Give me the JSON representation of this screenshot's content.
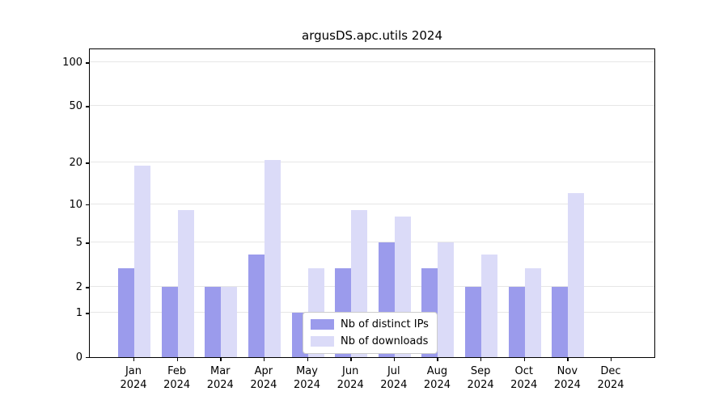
{
  "chart_data": {
    "type": "bar",
    "title": "argusDS.apc.utils 2024",
    "categories": [
      "Jan",
      "Feb",
      "Mar",
      "Apr",
      "May",
      "Jun",
      "Jul",
      "Aug",
      "Sep",
      "Oct",
      "Nov",
      "Dec"
    ],
    "x_tick_year": "2024",
    "series": [
      {
        "name": "Nb of distinct IPs",
        "color": "#9b9bec",
        "values": [
          3,
          2,
          2,
          4,
          1,
          3,
          5,
          3,
          2,
          2,
          2,
          0
        ]
      },
      {
        "name": "Nb of downloads",
        "color": "#dbdbf8",
        "values": [
          19,
          9,
          2,
          21,
          3,
          9,
          8,
          5,
          4,
          3,
          12,
          0
        ]
      }
    ],
    "yticks": [
      0,
      1,
      2,
      5,
      10,
      20,
      50,
      100
    ],
    "yscale": "log-like (log1p)",
    "ylim": [
      0,
      100
    ],
    "grid": "horizontal",
    "legend_position": "bottom-center-inside"
  }
}
